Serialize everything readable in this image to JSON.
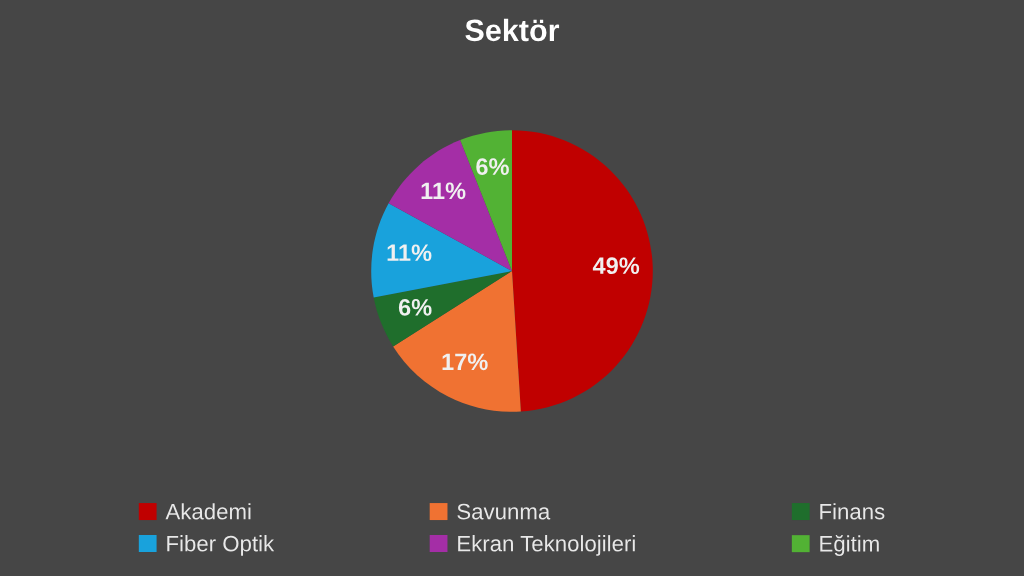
{
  "chart_data": {
    "type": "pie",
    "title": "Sektör",
    "categories": [
      "Akademi",
      "Savunma",
      "Finans",
      "Fiber Optik",
      "Ekran Teknolojileri",
      "Eğitim"
    ],
    "values": [
      49,
      17,
      6,
      11,
      11,
      6
    ],
    "value_labels": [
      "49%",
      "17%",
      "6%",
      "11%",
      "11%",
      "6%"
    ],
    "colors": [
      "#c00000",
      "#f07232",
      "#1f6e2c",
      "#19a2dc",
      "#a42ea6",
      "#52b234"
    ],
    "legend": "bottom"
  }
}
